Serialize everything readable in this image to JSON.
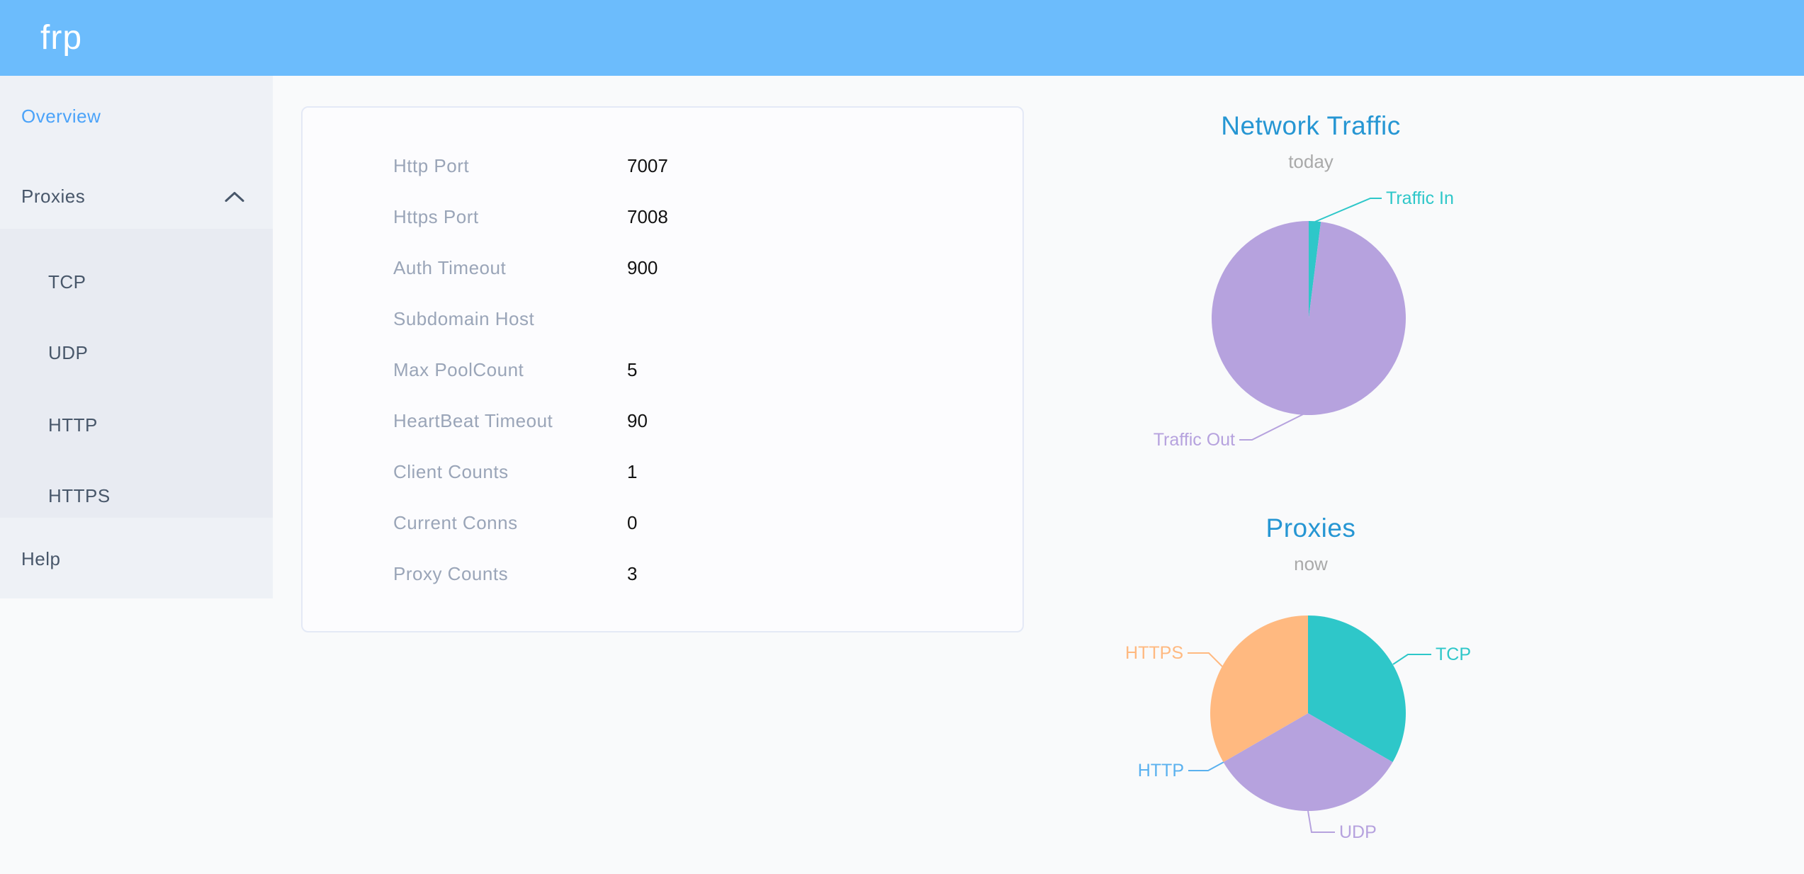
{
  "header": {
    "logo": "frp"
  },
  "sidebar": {
    "overview_label": "Overview",
    "proxies_label": "Proxies",
    "proxy_types": [
      "TCP",
      "UDP",
      "HTTP",
      "HTTPS"
    ],
    "help_label": "Help"
  },
  "overview_table": {
    "rows": [
      {
        "label": "Http Port",
        "value": "7007"
      },
      {
        "label": "Https Port",
        "value": "7008"
      },
      {
        "label": "Auth Timeout",
        "value": "900"
      },
      {
        "label": "Subdomain Host",
        "value": ""
      },
      {
        "label": "Max PoolCount",
        "value": "5"
      },
      {
        "label": "HeartBeat Timeout",
        "value": "90"
      },
      {
        "label": "Client Counts",
        "value": "1"
      },
      {
        "label": "Current Conns",
        "value": "0"
      },
      {
        "label": "Proxy Counts",
        "value": "3"
      }
    ]
  },
  "chart_data": [
    {
      "type": "pie",
      "title": "Network Traffic",
      "subtitle": "today",
      "legend_position": "none",
      "slices": [
        {
          "label": "Traffic In",
          "value": 2,
          "color": "#2ec7c9"
        },
        {
          "label": "Traffic Out",
          "value": 98,
          "color": "#b6a2de"
        }
      ]
    },
    {
      "type": "pie",
      "title": "Proxies",
      "subtitle": "now",
      "legend_position": "none",
      "slices": [
        {
          "label": "TCP",
          "value": 1,
          "color": "#2ec7c9"
        },
        {
          "label": "UDP",
          "value": 1,
          "color": "#b6a2de"
        },
        {
          "label": "HTTP",
          "value": 0,
          "color": "#5ab1ef"
        },
        {
          "label": "HTTPS",
          "value": 1,
          "color": "#ffb980"
        }
      ]
    }
  ],
  "colors": {
    "header_bg": "#6cbcfc",
    "sidebar_bg": "#eef1f6",
    "submenu_bg": "#e8ebf2",
    "sidebar_active": "#4ba3f9",
    "sidebar_text": "#48576a",
    "chart_title_blue": "#2696d3",
    "table_label_gray": "#9aa5b8"
  }
}
